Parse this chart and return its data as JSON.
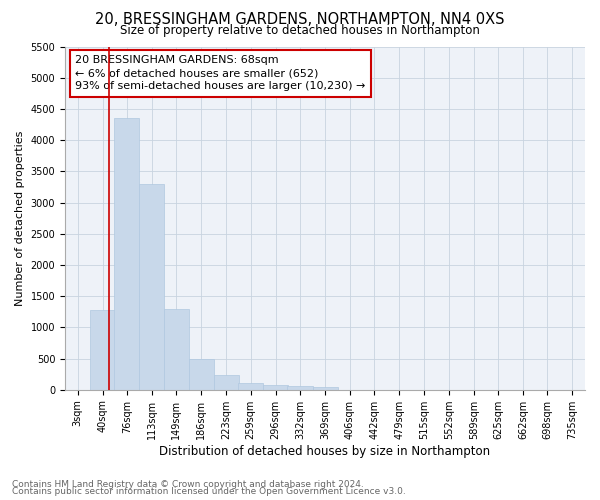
{
  "title": "20, BRESSINGHAM GARDENS, NORTHAMPTON, NN4 0XS",
  "subtitle": "Size of property relative to detached houses in Northampton",
  "xlabel": "Distribution of detached houses by size in Northampton",
  "ylabel": "Number of detached properties",
  "footnote1": "Contains HM Land Registry data © Crown copyright and database right 2024.",
  "footnote2": "Contains public sector information licensed under the Open Government Licence v3.0.",
  "annotation_line1": "20 BRESSINGHAM GARDENS: 68sqm",
  "annotation_line2": "← 6% of detached houses are smaller (652)",
  "annotation_line3": "93% of semi-detached houses are larger (10,230) →",
  "bar_edges": [
    3,
    40,
    76,
    113,
    149,
    186,
    223,
    259,
    296,
    332,
    369,
    406,
    442,
    479,
    515,
    552,
    589,
    625,
    662,
    698,
    735
  ],
  "bar_heights": [
    0,
    1280,
    4350,
    3300,
    1300,
    490,
    240,
    100,
    75,
    55,
    40,
    0,
    0,
    0,
    0,
    0,
    0,
    0,
    0,
    0,
    0
  ],
  "bar_color": "#c8d8ea",
  "bar_edge_color": "#b0c8e0",
  "red_line_x": 68,
  "red_line_color": "#cc0000",
  "annotation_box_color": "#cc0000",
  "grid_color": "#c8d4e0",
  "bg_color": "#eef2f8",
  "ylim": [
    0,
    5500
  ],
  "yticks": [
    0,
    500,
    1000,
    1500,
    2000,
    2500,
    3000,
    3500,
    4000,
    4500,
    5000,
    5500
  ],
  "title_fontsize": 10.5,
  "subtitle_fontsize": 8.5,
  "xlabel_fontsize": 8.5,
  "ylabel_fontsize": 8,
  "tick_fontsize": 7,
  "annot_fontsize": 8,
  "footnote_fontsize": 6.5
}
